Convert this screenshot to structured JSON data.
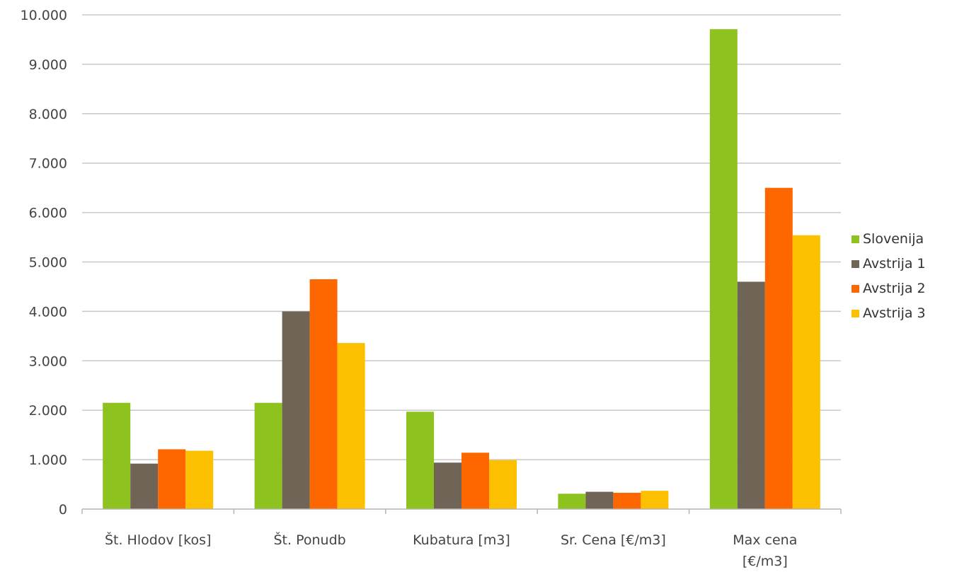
{
  "chart_data": {
    "type": "bar",
    "title": "",
    "xlabel": "",
    "ylabel": "",
    "ylim": [
      0,
      10000
    ],
    "yticks": [
      {
        "value": 0,
        "label": "0"
      },
      {
        "value": 1000,
        "label": "1.000"
      },
      {
        "value": 2000,
        "label": "2.000"
      },
      {
        "value": 3000,
        "label": "3.000"
      },
      {
        "value": 4000,
        "label": "4.000"
      },
      {
        "value": 5000,
        "label": "5.000"
      },
      {
        "value": 6000,
        "label": "6.000"
      },
      {
        "value": 7000,
        "label": "7.000"
      },
      {
        "value": 8000,
        "label": "8.000"
      },
      {
        "value": 9000,
        "label": "9.000"
      },
      {
        "value": 10000,
        "label": "10.000"
      }
    ],
    "categories": [
      [
        "Št. Hlodov [kos]"
      ],
      [
        "Št. Ponudb"
      ],
      [
        "Kubatura [m3]"
      ],
      [
        "Sr. Cena [€/m3]"
      ],
      [
        "Max cena",
        "[€/m3]"
      ]
    ],
    "grid": true,
    "legend_position": "right",
    "series": [
      {
        "name": "Slovenija",
        "color": "#8dc21f",
        "values": [
          2150,
          2150,
          1970,
          310,
          9710
        ]
      },
      {
        "name": "Avstrija 1",
        "color": "#706456",
        "values": [
          920,
          4000,
          940,
          350,
          4600
        ]
      },
      {
        "name": "Avstrija 2",
        "color": "#fe6600",
        "values": [
          1210,
          4650,
          1140,
          330,
          6500
        ]
      },
      {
        "name": "Avstrija 3",
        "color": "#fdc000",
        "values": [
          1180,
          3360,
          990,
          370,
          5540
        ]
      }
    ]
  }
}
